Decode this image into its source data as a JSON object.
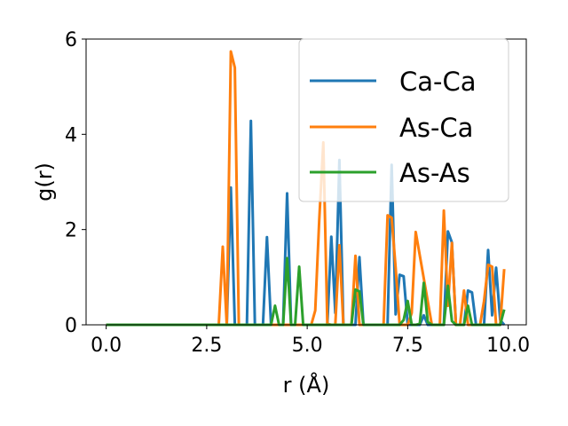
{
  "chart_data": {
    "type": "line",
    "title": "",
    "xlabel": "r (Å)",
    "ylabel": "g(r)",
    "xlim": [
      -0.5,
      10.45
    ],
    "ylim": [
      0,
      6
    ],
    "xticks": [
      0.0,
      2.5,
      5.0,
      7.5,
      10.0
    ],
    "xtick_labels": [
      "0.0",
      "2.5",
      "5.0",
      "7.5",
      "10.0"
    ],
    "yticks": [
      0,
      2,
      4,
      6
    ],
    "ytick_labels": [
      "0",
      "2",
      "4",
      "6"
    ],
    "grid": false,
    "legend_position": "top-right",
    "series": [
      {
        "name": "Ca-Ca",
        "color": "#1f77b4",
        "x": [
          0,
          2.9,
          3.0,
          3.1,
          3.2,
          3.3,
          3.5,
          3.6,
          3.7,
          3.9,
          4.0,
          4.1,
          4.4,
          4.5,
          4.6,
          5.5,
          5.6,
          5.7,
          5.8,
          5.9,
          6.0,
          6.2,
          6.3,
          6.4,
          7.0,
          7.1,
          7.2,
          7.3,
          7.4,
          7.5,
          7.7,
          7.8,
          7.9,
          8.0,
          8.1,
          8.4,
          8.5,
          8.6,
          8.7,
          8.9,
          9.0,
          9.1,
          9.2,
          9.4,
          9.5,
          9.6,
          9.7,
          9.8,
          9.9
        ],
        "y": [
          0,
          0,
          0,
          2.88,
          0,
          0,
          0,
          4.28,
          0,
          0,
          1.84,
          0,
          0,
          2.76,
          0,
          0,
          1.85,
          0.25,
          3.46,
          0,
          0,
          0,
          1.42,
          0,
          0,
          3.36,
          0.22,
          1.05,
          1.02,
          0,
          0,
          0,
          0.2,
          0,
          0,
          0,
          1.96,
          1.73,
          0,
          0,
          0.72,
          0.68,
          0,
          0,
          1.57,
          0.2,
          1.2,
          0.1,
          0
        ]
      },
      {
        "name": "As-Ca",
        "color": "#ff7f0e",
        "x": [
          0,
          2.7,
          2.8,
          2.9,
          3.0,
          3.1,
          3.2,
          3.3,
          3.4,
          5.0,
          5.1,
          5.2,
          5.3,
          5.4,
          5.5,
          5.6,
          5.7,
          5.8,
          5.9,
          6.1,
          6.2,
          6.3,
          6.4,
          6.9,
          7.0,
          7.1,
          7.2,
          7.3,
          7.5,
          7.6,
          7.7,
          8.1,
          8.2,
          8.3,
          8.4,
          8.5,
          8.6,
          8.7,
          8.8,
          8.9,
          9.0,
          9.2,
          9.3,
          9.4,
          9.5,
          9.6,
          9.7,
          9.8,
          9.9
        ],
        "y": [
          0,
          0,
          0,
          1.64,
          0,
          5.74,
          5.4,
          0,
          0,
          0,
          0,
          0.3,
          2.2,
          3.83,
          0.02,
          0,
          0,
          1.67,
          0,
          0,
          1.45,
          0,
          0,
          0,
          2.3,
          2.25,
          1.2,
          0,
          0,
          0.25,
          1.95,
          0,
          0,
          0,
          2.4,
          0.4,
          1.72,
          0,
          0,
          0.72,
          0,
          0,
          0,
          0.5,
          1.26,
          1.22,
          0,
          0,
          1.17
        ]
      },
      {
        "name": "As-As",
        "color": "#2ca02c",
        "x": [
          0,
          3.9,
          4.0,
          4.1,
          4.2,
          4.3,
          4.4,
          4.5,
          4.6,
          4.7,
          4.8,
          4.9,
          6.0,
          6.1,
          6.2,
          6.3,
          6.4,
          6.5,
          7.2,
          7.3,
          7.4,
          7.5,
          7.6,
          7.7,
          7.8,
          7.9,
          8.0,
          8.1,
          8.4,
          8.5,
          8.6,
          8.7,
          8.8,
          8.9,
          9.0,
          9.1,
          9.7,
          9.8,
          9.9
        ],
        "y": [
          0,
          0,
          0,
          0,
          0.4,
          0,
          0,
          1.4,
          0,
          0,
          1.22,
          0,
          0,
          0,
          0.74,
          0.7,
          0,
          0,
          0,
          0,
          0.1,
          0.5,
          0,
          0,
          0.02,
          0.88,
          0.06,
          0,
          0,
          0.82,
          0.08,
          0,
          0,
          0,
          0.4,
          0,
          0,
          0,
          0.32
        ]
      }
    ]
  }
}
